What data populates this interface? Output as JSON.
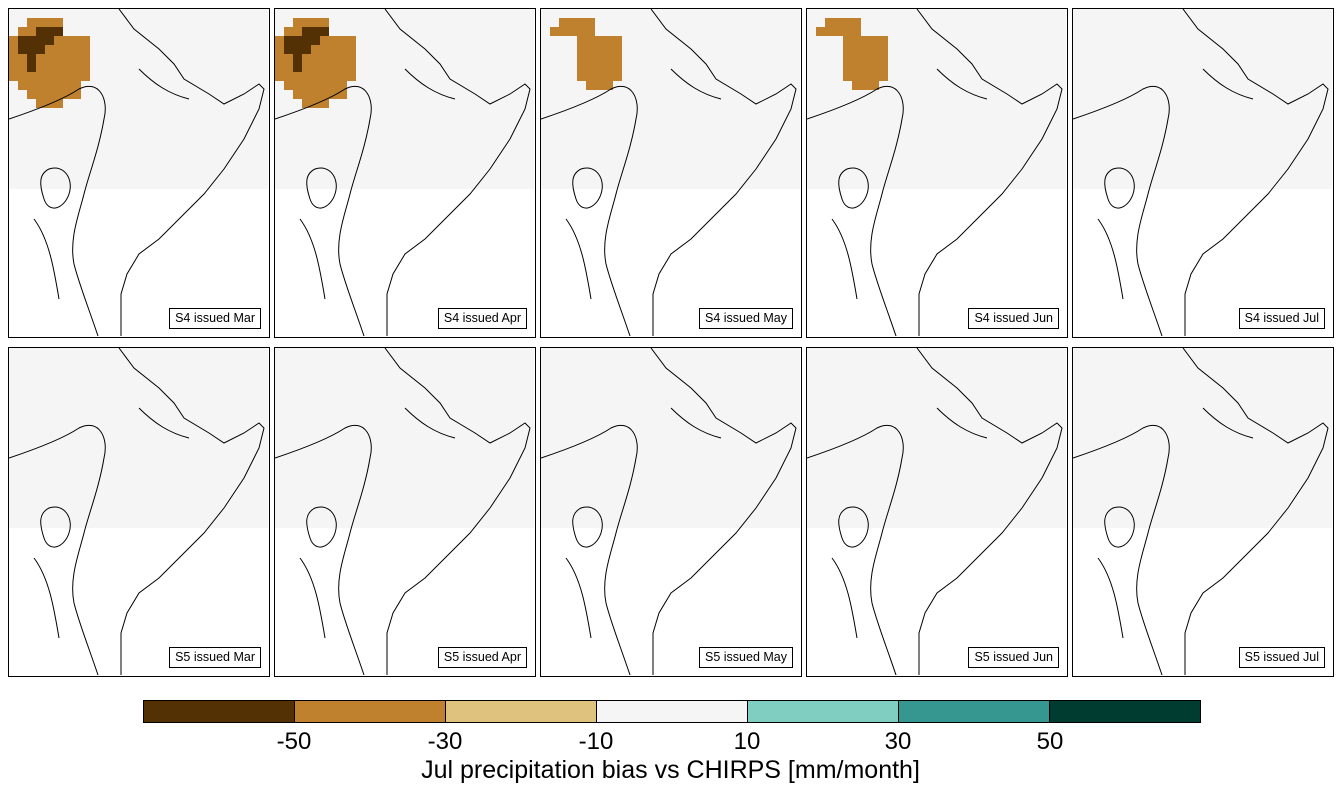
{
  "panels": [
    {
      "label": "S4 issued Mar",
      "rows": [
        "NNNNNNNNNNNNNNNNNNNNNNNNNNNNN",
        "NNBBBBNNNNNNNNNNNNNNNNNNNNNNN",
        "NBBDDDNNNNNNNNNNNNNNNNNNNNNNN",
        "BDDDDBBBBNNNNNNNNNNNNNNNNNNNN",
        "BDDDBBBBBNNNNNNNNNNNNNNNNNNNN",
        "BBDBBBBBBNNNNNNNNNNNNNNNNNNNN",
        "BBDBBBBBBNNNNNNNNNNNNNNNNNNNN",
        "BBBBBBBBBNNNNNNNNNNNNNNNNNNNN",
        "NBBBBBBBNNNNNNNNNNNNNNNNNNNNN",
        "NNBBBBBBNNNNNNNNNNNNNNNNNNNNN",
        "NNNBBBNNNNNNNNNNNNNNNNNNNNNNN",
        "NNNNNNNNNNNNNNNNNNNNNNNNNNNNN",
        "NNNNNNNNNNNNNNNNNNNNNNNNNNNNN",
        "NNNNNNNNNNNNNNNNNNNNNNNNNNNNN",
        "NNNNNNNNNNNNNNNNNNNNNNNNNNNNN",
        "NNNNNNNNNNNNNNNNNNNNNNNNNNNNN",
        "NNNNNNNNNNNNNNNNNNNNNNNNNNNNN",
        "NNNNNNNNNNNNNNNNNNNNNNNNNNNNN",
        "NNNNNNNNNNNNNNNNNNNNNNNNNNNNN",
        "NNNNNNNNNNNNNNNNNNNNNNNNNNNNN"
      ]
    },
    {
      "label": "S4 issued Apr",
      "rows": [
        "NNNNNNNNNNNNNNNNNNNNNNNNNNNNN",
        "NNBBBBNNNNNNNNNNNNNNNNNNNNNNN",
        "NBBDDDNNNNNNNNNNNNNNNNNNNNNNN",
        "BDDDDBBBBNNNNNNNNNNNNNNNNNNNN",
        "BDDDBBBBBNNNNNNNNNNNNNNNNNNNN",
        "BBDBBBBBBNNNNNNNNNNNNNNNNNNNN",
        "BBDBBBBBBNNNNNNNNNNNNNNNNNNNN",
        "BBBBBBBBBNNNNNNNNNNNNNNNNNNNN",
        "NBBBBBBBNNNNNNNNNNNNNNNNNNNNN",
        "NNBBBBBBNNNNNNNNNNNNNNNNNNNNN",
        "NNNBBBNNNNNNNNNNNNNNNNNNNNNNN",
        "NNNNNNNNNNNNNNNNNNNNNNNNNNNNN",
        "NNNNNNNNNNNNNNNNNNNNNNNNNNNNN",
        "NNNNNNNNNNNNNNNNNNNNNNNNNNNNN",
        "NNNNNNNNNNNNNNNNNNNNNNNNNNNNN",
        "NNNNNNNNNNNNNNNNNNNNNNNNNNNNN",
        "NNNNNNNNNNNNNNNNNNNNNNNNNNNNN",
        "NNNNNNNNNNNNNNNNNNNNNNNNNNNNN",
        "NNNNNNNNNNNNNNNNNNNNNNNNNNNNN",
        "NNNNNNNNNNNNNNNNNNNNNNNNNNNNN"
      ]
    },
    {
      "label": "S4 issued May",
      "rows": [
        "NNNNNNNNNNNNNNNNNNNNNNNNNNNNN",
        "NNBBBBNNNNNNNNNNNNNNNNNNNNNNN",
        "NBBBBBNNNNNNNNNNNNNNNNNNNNNNN",
        "NNNNBBBBBNNNNNNNNNNNNNNNNNNNN",
        "NNNNBBBBBNNNNNNNNNNNNNNNNNNNN",
        "NNNNBBBBBNNNNNNNNNNNNNNNNNNNN",
        "NNNNBBBBBNNNNNNNNNNNNNNNNNNNN",
        "NNNNBBBBBNNNNNNNNNNNNNNNNNNNN",
        "NNNNNBBBNNNNNNNNNNNNNNNNNNNNN",
        "NNNNNNNNNNNNNNNNNNNNNNNNNNNNN",
        "NNNNNNNNNNNNNNNNNNNNNNNNNNNNN",
        "NNNNNNNNNNNNNNNNNNNNNNNNNNNNN",
        "NNNNNNNNNNNNNNNNNNNNNNNNNNNNN",
        "NNNNNNNNNNNNNNNNNNNNNNNNNNNNN",
        "NNNNNNNNNNNNNNNNNNNNNNNNNNNNN",
        "NNNNNNNNNNNNNNNNNNNNNNNNNNNNN",
        "NNNNNNNNNNNNNNNNNNNNNNNNNNNNN",
        "NNNNNNNNNNNNNNNNNNNNNNNNNNNNN",
        "NNNNNNNNNNNNNNNNNNNNNNNNNNNNN",
        "NNNNNNNNNNNNNNNNNNNNNNNNNNNNN"
      ]
    },
    {
      "label": "S4 issued Jun",
      "rows": [
        "NNNNNNNNNNNNNNNNNNNNNNNNNNNNN",
        "NNBBBBNNNNNNNNNNNNNNNNNNNNNNN",
        "NBBBBBNNNNNNNNNNNNNNNNNNNNNNN",
        "NNNNBBBBBNNNNNNNNNNNNNNNNNNNN",
        "NNNNBBBBBNNNNNNNNNNNNNNNNNNNN",
        "NNNNBBBBBNNNNNNNNNNNNNNNNNNNN",
        "NNNNBBBBBNNNNNNNNNNNNNNNNNNNN",
        "NNNNBBBBBNNNNNNNNNNNNNNNNNNNN",
        "NNNNNBBBNNNNNNNNNNNNNNNNNNNNN",
        "NNNNNNNNNNNNNNNNNNNNNNNNNNNNN",
        "NNNNNNNNNNNNNNNNNNNNNNNNNNNNN",
        "NNNNNNNNNNNNNNNNNNNNNNNNNNNNN",
        "NNNNNNNNNNNNNNNNNNNNNNNNNNNNN",
        "NNNNNNNNNNNNNNNNNNNNNNNNNNNNN",
        "NNNNNNNNNNNNNNNNNNNNNNNNNNNNN",
        "NNNNNNNNNNNNNNNNNNNNNNNNNNNNN",
        "NNNNNNNNNNNNNNNNNNNNNNNNNNNNN",
        "NNNNNNNNNNNNNNNNNNNNNNNNNNNNN",
        "NNNNNNNNNNNNNNNNNNNNNNNNNNNNN",
        "NNNNNNNNNNNNNNNNNNNNNNNNNNNNN"
      ]
    },
    {
      "label": "S4 issued Jul",
      "rows": [
        "NNNNNNNNNNNNNNNNNNNNNNNNNNNNN",
        "NNNNNNNNNNNNNNNNNNNNNNNNNNNNN",
        "NNNNNNNNNNNNNNNNNNNNNNNNNNNNN",
        "NNNNNNNNNNNNNNNNNNNNNNNNNNNNN",
        "NNNNNNNNNNNNNNNNNNNNNNNNNNNNN",
        "NNNNNNNNNNNNNNNNNNNNNNNNNNNNN",
        "NNNNNNNNNNNNNNNNNNNNNNNNNNNNN",
        "NNNNNNNNNNNNNNNNNNNNNNNNNNNNN",
        "NNNNNNNNNNNNNNNNNNNNNNNNNNNNN",
        "NNNNNNNNNNNNNNNNNNNNNNNNNNNNN",
        "NNNNNNNNNNNNNNNNNNNNNNNNNNNNN",
        "NNNNNNNNNNNNNNNNNNNNNNNNNNNNN",
        "NNNNNNNNNNNNNNNNNNNNNNNNNNNNN",
        "NNNNNNNNNNNNNNNNNNNNNNNNNNNNN",
        "NNNNNNNNNNNNNNNNNNNNNNNNNNNNN",
        "NNNNNNNNNNNNNNNNNNNNNNNNNNNNN",
        "NNNNNNNNNNNNNNNNNNNNNNNNNNNNN",
        "NNNNNNNNNNNNNNNNNNNNNNNNNNNNN",
        "NNNNNNNNNNNNNNNNNNNNNNNNNNNNN",
        "NNNNNNNNNNNNNNNNNNNNNNNNNNNNN"
      ]
    },
    {
      "label": "S5 issued Mar",
      "rows": [
        "NNNNNNNNNNNNNNNNNNNNNNNNNNNNN",
        "NNNNNNNNNNNNNNNNNNNNNNNNNNNNN",
        "NNNNNNNNNNNNNNNNNNNNNNNNNNNNN",
        "NNNNNNNNNNNNNNNNNNNNNNNNNNNNN",
        "NNNNNNNNNNNNNNNNNNNNNNNNNNNNN",
        "NNNNNNNNNNNNNNNNNNNNNNNNNNNNN",
        "NNNNNNNNNNNNNNNNNNNNNNNNNNNNN",
        "NNNNNNNNNNNNNNNNNNNNNNNNNNNNN",
        "NNNNNNNNNNNNNNNNNNNNNNNNNNNNN",
        "NNNNNNNNNNNNNNNNNNNNNNNNNNNNN",
        "NNNNNNNNNNNNNNNNNNNNNNNNNNNNN",
        "NNNNNNNNNNNNNNNNNNNNNNNNNNNNN",
        "NNNNNNNNNNNNNNNNNNNNNNNNNNNNN",
        "NNNNNNNNNNNNNNNNNNNNNNNNNNNNN",
        "NNNNNNNNNNNNNNNNNNNNNNNNNNNNN",
        "NNNNNNNNNNNNNNNNNNNNNNNNNNNNN",
        "NNNNNNNNNNNNNNNNNNNNNNNNNNNNN",
        "NNNNNNNNNNNNNNNNNNNNNNNNNNNNN",
        "NNNNNNNNNNNNNNNNNNNNNNNNNNNNN",
        "NNNNNNNNNNNNNNNNNNNNNNNNNNNNN"
      ]
    },
    {
      "label": "S5 issued Apr",
      "rows": [
        "NNNNNNNNNNNNNNNNNNNNNNNNNNNNN",
        "NNNNNNNNNNNNNNNNNNNNNNNNNNNNN",
        "NNNNNNNNNNNNNNNNNNNNNNNNNNNNN",
        "NNNNNNNNNNNNNNNNNNNNNNNNNNNNN",
        "NNNNNNNNNNNNNNNNNNNNNNNNNNNNN",
        "NNNNNNNNNNNNNNNNNNNNNNNNNNNNN",
        "NNNNNNNNNNNNNNNNNNNNNNNNNNNNN",
        "NNNNNNNNNNNNNNNNNNNNNNNNNNNNN",
        "NNNNNNNNNNNNNNNNNNNNNNNNNNNNN",
        "NNNNNNNNNNNNNNNNNNNNNNNNNNNNN",
        "NNNNNNNNNNNNNNNNNNNNNNNNNNNNN",
        "NNNNNNNNNNNNNNNNNNNNNNNNNNNNN",
        "NNNNNNNNNNNNNNNNNNNNNNNNNNNNN",
        "NNNNNNNNNNNNNNNNNNNNNNNNNNNNN",
        "NNNNNNNNNNNNNNNNNNNNNNNNNNNNN",
        "NNNNNNNNNNNNNNNNNNNNNNNNNNNNN",
        "NNNNNNNNNNNNNNNNNNNNNNNNNNNNN",
        "NNNNNNNNNNNNNNNNNNNNNNNNNNNNN",
        "NNNNNNNNNNNNNNNNNNNNNNNNNNNNN",
        "NNNNNNNNNNNNNNNNNNNNNNNNNNNNN"
      ]
    },
    {
      "label": "S5 issued May",
      "rows": [
        "NNNNNNNNNNNNNNNNNNNNNNNNNNNNN",
        "NNNNNNNNNNNNNNNNNNNNNNNNNNNNN",
        "NNNNNNNNNNNNNNNNNNNNNNNNNNNNN",
        "NNNNNNNNNNNNNNNNNNNNNNNNNNNNN",
        "NNNNNNNNNNNNNNNNNNNNNNNNNNNNN",
        "NNNNNNNNNNNNNNNNNNNNNNNNNNNNN",
        "NNNNNNNNNNNNNNNNNNNNNNNNNNNNN",
        "NNNNNNNNNNNNNNNNNNNNNNNNNNNNN",
        "NNNNNNNNNNNNNNNNNNNNNNNNNNNNN",
        "NNNNNNNNNNNNNNNNNNNNNNNNNNNNN",
        "NNNNNNNNNNNNNNNNNNNNNNNNNNNNN",
        "NNNNNNNNNNNNNNNNNNNNNNNNNNNNN",
        "NNNNNNNNNNNNNNNNNNNNNNNNNNNNN",
        "NNNNNNNNNNNNNNNNNNNNNNNNNNNNN",
        "NNNNNNNNNNNNNNNNNNNNNNNNNNNNN",
        "NNNNNNNNNNNNNNNNNNNNNNNNNNNNN",
        "NNNNNNNNNNNNNNNNNNNNNNNNNNNNN",
        "NNNNNNNNNNNNNNNNNNNNNNNNNNNNN",
        "NNNNNNNNNNNNNNNNNNNNNNNNNNNNN",
        "NNNNNNNNNNNNNNNNNNNNNNNNNNNNN"
      ]
    },
    {
      "label": "S5 issued Jun",
      "rows": [
        "NNNNNNNNNNNNNNNNNNNNNNNNNNNNN",
        "NNNNNNNNNNNNNNNNNNNNNNNNNNNNN",
        "NNNNNNNNNNNNNNNNNNNNNNNNNNNNN",
        "NNNNNNNNNNNNNNNNNNNNNNNNNNNNN",
        "NNNNNNNNNNNNNNNNNNNNNNNNNNNNN",
        "NNNNNNNNNNNNNNNNNNNNNNNNNNNNN",
        "NNNNNNNNNNNNNNNNNNNNNNNNNNNNN",
        "NNNNNNNNNNNNNNNNNNNNNNNNNNNNN",
        "NNNNNNNNNNNNNNNNNNNNNNNNNNNNN",
        "NNNNNNNNNNNNNNNNNNNNNNNNNNNNN",
        "NNNNNNNNNNNNNNNNNNNNNNNNNNNNN",
        "NNNNNNNNNNNNNNNNNNNNNNNNNNNNN",
        "NNNNNNNNNNNNNNNNNNNNNNNNNNNNN",
        "NNNNNNNNNNNNNNNNNNNNNNNNNNNNN",
        "NNNNNNNNNNNNNNNNNNNNNNNNNNNNN",
        "NNNNNNNNNNNNNNNNNNNNNNNNNNNNN",
        "NNNNNNNNNNNNNNNNNNNNNNNNNNNNN",
        "NNNNNNNNNNNNNNNNNNNNNNNNNNNNN",
        "NNNNNNNNNNNNNNNNNNNNNNNNNNNNN",
        "NNNNNNNNNNNNNNNNNNNNNNNNNNNNN"
      ]
    },
    {
      "label": "S5 issued Jul",
      "rows": [
        "NNNNNNNNNNNNNNNNNNNNNNNNNNNNN",
        "NNNNNNNNNNNNNNNNNNNNNNNNNNNNN",
        "NNNNNNNNNNNNNNNNNNNNNNNNNNNNN",
        "NNNNNNNNNNNNNNNNNNNNNNNNNNNNN",
        "NNNNNNNNNNNNNNNNNNNNNNNNNNNNN",
        "NNNNNNNNNNNNNNNNNNNNNNNNNNNNN",
        "NNNNNNNNNNNNNNNNNNNNNNNNNNNNN",
        "NNNNNNNNNNNNNNNNNNNNNNNNNNNNN",
        "NNNNNNNNNNNNNNNNNNNNNNNNNNNNN",
        "NNNNNNNNNNNNNNNNNNNNNNNNNNNNN",
        "NNNNNNNNNNNNNNNNNNNNNNNNNNNNN",
        "NNNNNNNNNNNNNNNNNNNNNNNNNNNNN",
        "NNNNNNNNNNNNNNNNNNNNNNNNNNNNN",
        "NNNNNNNNNNNNNNNNNNNNNNNNNNNNN",
        "NNNNNNNNNNNNNNNNNNNNNNNNNNNNN",
        "NNNNNNNNNNNNNNNNNNNNNNNNNNNNN",
        "NNNNNNNNNNNNNNNNNNNNNNNNNNNNN",
        "NNNNNNNNNNNNNNNNNNNNNNNNNNNNN",
        "NNNNNNNNNNNNNNNNNNNNNNNNNNNNN",
        "NNNNNNNNNNNNNNNNNNNNNNNNNNNNN"
      ]
    }
  ],
  "colorbar": {
    "title": "Jul precipitation bias vs CHIRPS [mm/month]",
    "colors": [
      "#543005",
      "#bf812d",
      "#dfc27d",
      "#f5f5f5",
      "#80cdc1",
      "#35978f",
      "#003c30"
    ],
    "tick_labels": [
      "-50",
      "-30",
      "-10",
      "10",
      "30",
      "50"
    ]
  },
  "palette": {
    "D": "#543005",
    "B": "#bf812d",
    "L": "#dfc27d",
    "N": "#f5f5f5",
    "T": "#80cdc1",
    "M": "#35978f",
    "K": "#003c30"
  }
}
